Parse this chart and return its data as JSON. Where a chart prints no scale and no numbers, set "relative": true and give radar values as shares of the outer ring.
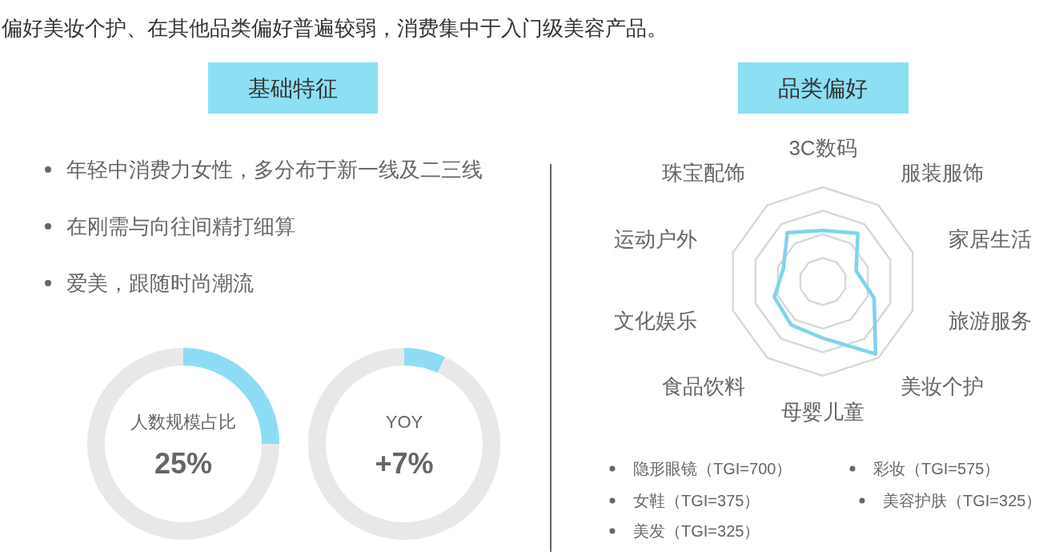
{
  "chart_data": [
    {
      "type": "other",
      "title": "偏好美妆个护、在其他品类偏好普遍较弱，消费集中于入门级美容产品。",
      "subtitle": "基础特征",
      "annotations": [
        "年轻中消费力女性，多分布于新一线及二三线",
        "在刚需与向往间精打细算",
        "爱美，跟随时尚潮流"
      ]
    },
    {
      "type": "donut",
      "title": "人数规模占比",
      "categories": [
        null,
        null
      ],
      "values": [
        25,
        75
      ],
      "colors": [
        "#8ddcf3",
        "#e8e8e8"
      ],
      "annotations": [
        "25%"
      ]
    },
    {
      "type": "donut",
      "title": "YOY",
      "categories": [
        null,
        null
      ],
      "values": [
        7,
        93
      ],
      "colors": [
        "#8ddcf3",
        "#e8e8e8"
      ],
      "annotations": [
        "+7%"
      ]
    },
    {
      "type": "radar",
      "title": "品类偏好",
      "categories": [
        "3C数码",
        "服装服饰",
        "家居生活",
        "旅游服务",
        "美妆个护",
        "母婴儿童",
        "食品饮料",
        "文化娱乐",
        "运动户外",
        "珠宝配饰"
      ],
      "relative": true,
      "grid": true,
      "series": [
        {
          "color": "#7fd3ec",
          "values": [
            0.54,
            0.63,
            0.37,
            0.57,
            0.95,
            0.6,
            0.57,
            0.54,
            0.44,
            0.64
          ]
        }
      ],
      "annotations": [
        "隐形眼镜（TGI=700）",
        "彩妆（TGI=575）",
        "女鞋（TGI=375）",
        "美容护肤（TGI=325）",
        "美发（TGI=325）"
      ]
    }
  ]
}
